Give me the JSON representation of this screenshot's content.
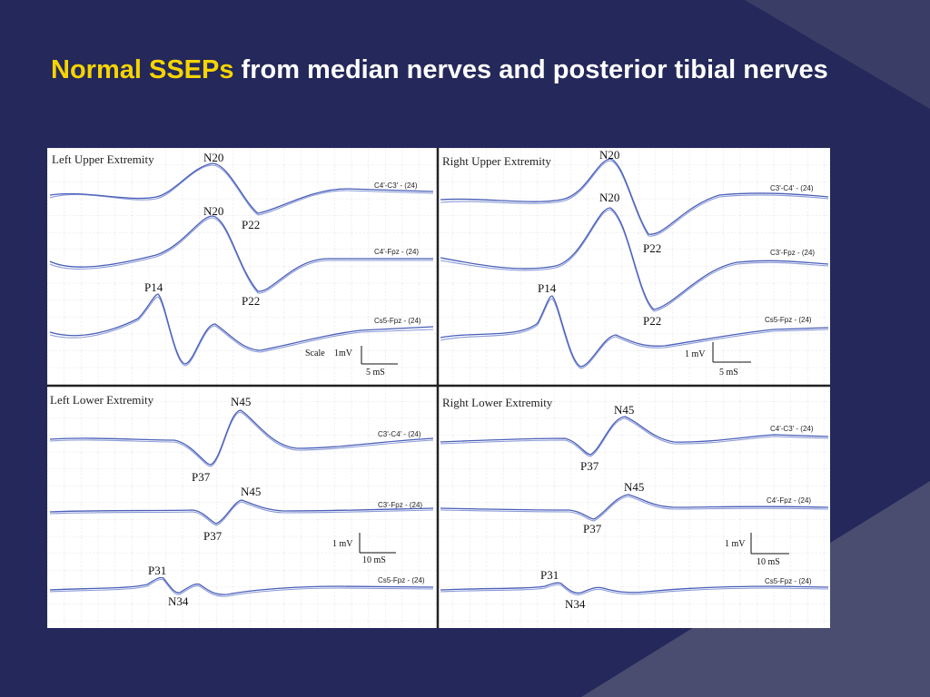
{
  "slide": {
    "title_highlight": "Normal SSEPs",
    "title_rest": " from median nerves and posterior tibial nerves"
  },
  "colors": {
    "background": "#24285a",
    "title_highlight": "#f5d400",
    "title_text": "#ffffff",
    "trace": "#4a5fb8",
    "grid": "#d8d8d8"
  },
  "panels": [
    {
      "label": "Left Upper Extremity",
      "traces": [
        {
          "channel": "C4'-C3' - (24)",
          "peaks": [
            "N20",
            "P22"
          ]
        },
        {
          "channel": "C4'-Fpz - (24)",
          "peaks": [
            "N20",
            "P22"
          ]
        },
        {
          "channel": "Cs5-Fpz - (24)",
          "peaks": [
            "P14"
          ]
        }
      ],
      "scale": {
        "prefix": "Scale",
        "amplitude": "1mV",
        "time": "5 mS"
      }
    },
    {
      "label": "Right Upper Extremity",
      "traces": [
        {
          "channel": "C3'-C4' - (24)",
          "peaks": [
            "N20",
            "P22"
          ]
        },
        {
          "channel": "C3'-Fpz - (24)",
          "peaks": [
            "N20",
            "P22"
          ]
        },
        {
          "channel": "Cs5-Fpz - (24)",
          "peaks": [
            "P14"
          ]
        }
      ],
      "scale": {
        "amplitude": "1 mV",
        "time": "5 mS"
      }
    },
    {
      "label": "Left Lower Extremity",
      "traces": [
        {
          "channel": "C3'-C4' - (24)",
          "peaks": [
            "N45",
            "P37"
          ]
        },
        {
          "channel": "C3'-Fpz - (24)",
          "peaks": [
            "N45",
            "P37"
          ]
        },
        {
          "channel": "Cs5-Fpz - (24)",
          "peaks": [
            "P31",
            "N34"
          ]
        }
      ],
      "scale": {
        "amplitude": "1 mV",
        "time": "10 mS"
      }
    },
    {
      "label": "Right Lower Extremity",
      "traces": [
        {
          "channel": "C4'-C3' - (24)",
          "peaks": [
            "N45",
            "P37"
          ]
        },
        {
          "channel": "C4'-Fpz - (24)",
          "peaks": [
            "N45",
            "P37"
          ]
        },
        {
          "channel": "Cs5-Fpz - (24)",
          "peaks": [
            "P31",
            "N34"
          ]
        }
      ],
      "scale": {
        "amplitude": "1 mV",
        "time": "10 mS"
      }
    }
  ]
}
